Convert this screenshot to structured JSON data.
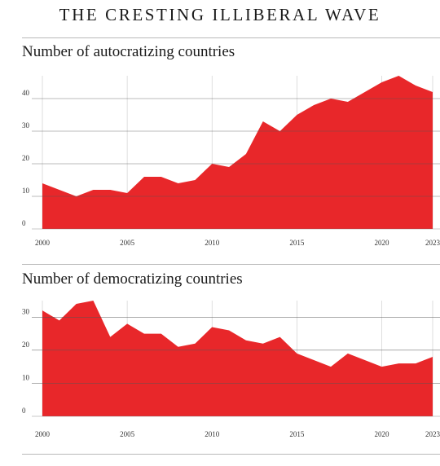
{
  "title": "THE CRESTING ILLIBERAL WAVE",
  "colors": {
    "area": "#e8272a",
    "gridline": "#d6d6d6",
    "rule": "#b9b9b9",
    "text": "#1a1a1a"
  },
  "chart_data": [
    {
      "type": "area",
      "title": "Number of autocratizing countries",
      "xlabel": "",
      "ylabel": "",
      "x": [
        2000,
        2001,
        2002,
        2003,
        2004,
        2005,
        2006,
        2007,
        2008,
        2009,
        2010,
        2011,
        2012,
        2013,
        2014,
        2015,
        2016,
        2017,
        2018,
        2019,
        2020,
        2021,
        2022,
        2023
      ],
      "values": [
        14,
        12,
        10,
        12,
        12,
        11,
        16,
        16,
        14,
        15,
        20,
        19,
        23,
        33,
        30,
        35,
        38,
        40,
        39,
        42,
        45,
        47,
        44,
        42
      ],
      "xlim": [
        2000,
        2023
      ],
      "ylim": [
        0,
        47
      ],
      "x_ticks": [
        2000,
        2005,
        2010,
        2015,
        2020,
        2023
      ],
      "y_ticks": [
        0,
        10,
        20,
        30,
        40
      ],
      "grid": true
    },
    {
      "type": "area",
      "title": "Number of democratizing countries",
      "xlabel": "",
      "ylabel": "",
      "x": [
        2000,
        2001,
        2002,
        2003,
        2004,
        2005,
        2006,
        2007,
        2008,
        2009,
        2010,
        2011,
        2012,
        2013,
        2014,
        2015,
        2016,
        2017,
        2018,
        2019,
        2020,
        2021,
        2022,
        2023
      ],
      "values": [
        32,
        29,
        34,
        35,
        24,
        28,
        25,
        25,
        21,
        22,
        27,
        26,
        23,
        22,
        24,
        19,
        17,
        15,
        19,
        17,
        15,
        16,
        16,
        18
      ],
      "xlim": [
        2000,
        2023
      ],
      "ylim": [
        0,
        35
      ],
      "x_ticks": [
        2000,
        2005,
        2010,
        2015,
        2020,
        2023
      ],
      "y_ticks": [
        0,
        10,
        20,
        30
      ],
      "grid": true
    }
  ]
}
